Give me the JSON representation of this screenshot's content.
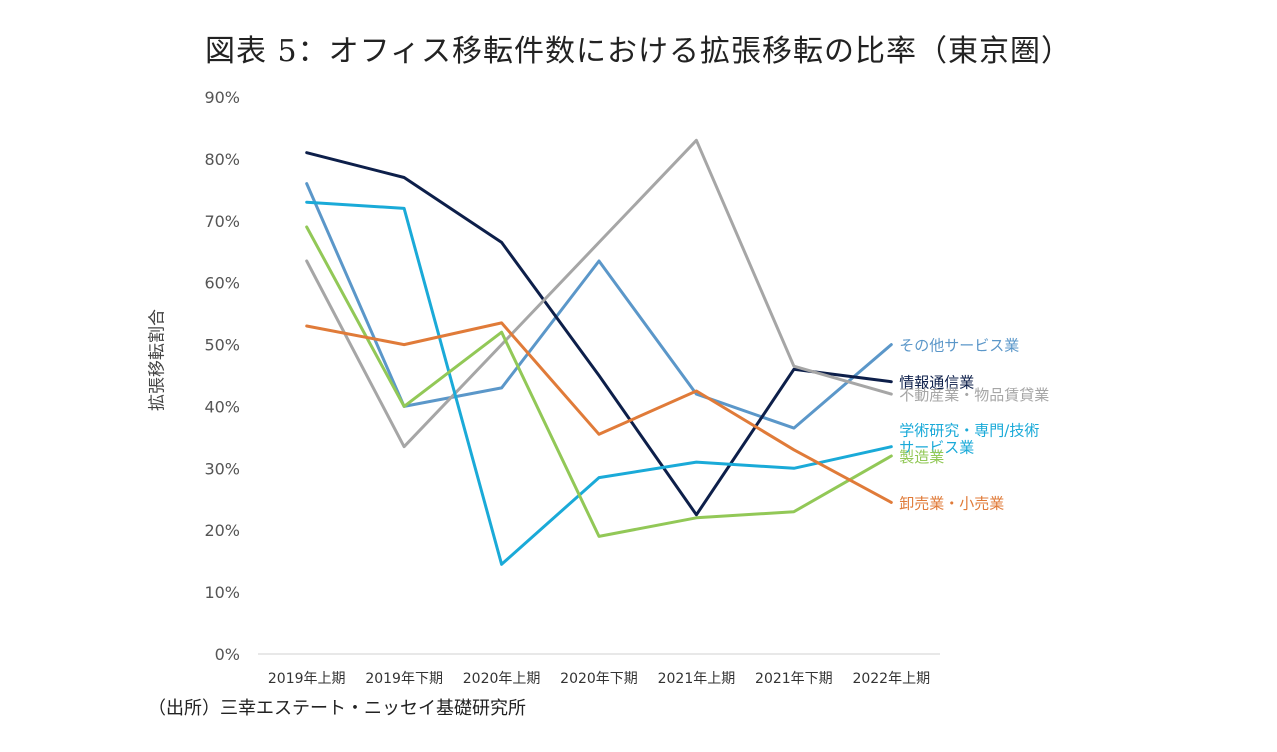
{
  "chart_data": {
    "type": "line",
    "title": "図表 5：オフィス移転件数における拡張移転の比率（東京圏）",
    "xlabel": "",
    "ylabel": "拡張移転割合",
    "ylim": [
      0,
      0.9
    ],
    "yticks": [
      "0%",
      "10%",
      "20%",
      "30%",
      "40%",
      "50%",
      "60%",
      "70%",
      "80%",
      "90%"
    ],
    "categories": [
      "2019年上期",
      "2019年下期",
      "2020年上期",
      "2020年下期",
      "2021年上期",
      "2021年下期",
      "2022年上期"
    ],
    "grid": false,
    "legend": "inline-right",
    "series": [
      {
        "name": "その他サービス業",
        "color": "#5b97c9",
        "values": [
          0.76,
          0.4,
          0.43,
          0.635,
          0.42,
          0.365,
          0.5
        ]
      },
      {
        "name": "情報通信業",
        "color": "#0d1f4a",
        "values": [
          0.81,
          0.77,
          0.665,
          0.45,
          0.225,
          0.46,
          0.44
        ]
      },
      {
        "name": "不動産業・物品賃貸業",
        "color": "#a6a6a6",
        "values": [
          0.635,
          0.335,
          0.5,
          0.665,
          0.83,
          0.465,
          0.42
        ]
      },
      {
        "name": "学術研究・専門/技術サービス業",
        "label_lines": [
          "学術研究・専門/技術",
          "サービス業"
        ],
        "color": "#1aaad8",
        "values": [
          0.73,
          0.72,
          0.145,
          0.285,
          0.31,
          0.3,
          0.335
        ]
      },
      {
        "name": "製造業",
        "color": "#92c857",
        "values": [
          0.69,
          0.4,
          0.52,
          0.19,
          0.22,
          0.23,
          0.32
        ]
      },
      {
        "name": "卸売業・小売業",
        "color": "#e07b39",
        "values": [
          0.53,
          0.5,
          0.535,
          0.355,
          0.425,
          0.33,
          0.245
        ]
      }
    ]
  },
  "source": "（出所）三幸エステート・ニッセイ基礎研究所"
}
